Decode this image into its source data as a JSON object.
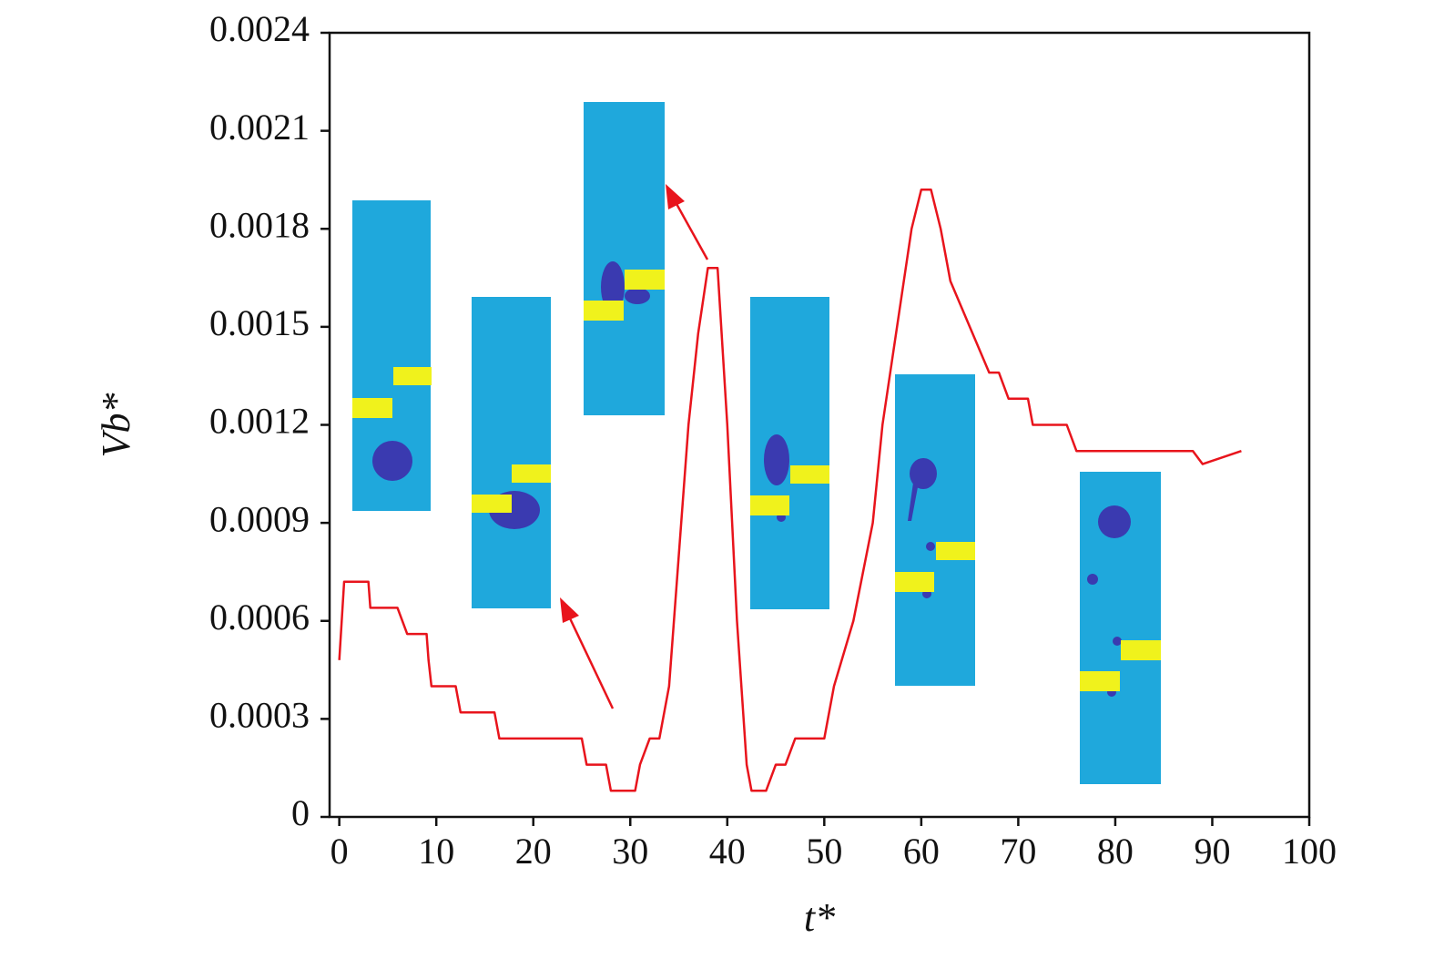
{
  "chart_data": {
    "type": "line",
    "xlabel": "t*",
    "ylabel": "Vb*",
    "x": [
      0,
      0.5,
      3,
      3.2,
      6,
      7,
      9,
      9.2,
      9.5,
      12,
      12.5,
      16,
      16.5,
      25,
      25.5,
      27.5,
      28,
      30.5,
      31,
      32,
      33,
      34,
      35,
      36,
      37,
      38,
      39,
      40,
      41,
      42,
      42.5,
      44,
      45,
      46,
      47,
      50,
      51,
      53,
      55,
      56,
      57,
      58,
      59,
      60,
      61,
      62,
      63,
      65,
      67,
      68,
      69,
      71,
      71.5,
      75,
      76,
      88,
      89,
      93
    ],
    "values": [
      0.00048,
      0.00072,
      0.00072,
      0.00064,
      0.00064,
      0.00056,
      0.00056,
      0.00048,
      0.0004,
      0.0004,
      0.00032,
      0.00032,
      0.00024,
      0.00024,
      0.00016,
      0.00016,
      8e-05,
      8e-05,
      0.00016,
      0.00024,
      0.00024,
      0.0004,
      0.0008,
      0.0012,
      0.00148,
      0.00168,
      0.00168,
      0.0012,
      0.0006,
      0.00016,
      8e-05,
      8e-05,
      0.00016,
      0.00016,
      0.00024,
      0.00024,
      0.0004,
      0.0006,
      0.0009,
      0.0012,
      0.0014,
      0.0016,
      0.0018,
      0.00192,
      0.00192,
      0.0018,
      0.00164,
      0.0015,
      0.00136,
      0.00136,
      0.00128,
      0.00128,
      0.0012,
      0.0012,
      0.00112,
      0.00112,
      0.00108,
      0.00112
    ],
    "color": "#e8141c",
    "xlim": [
      -1,
      100
    ],
    "xticks": [
      0,
      10,
      20,
      30,
      40,
      50,
      60,
      70,
      80,
      90,
      100
    ],
    "ylim": [
      0,
      0.0024
    ],
    "yticks": [
      0,
      0.0003,
      0.0006,
      0.0009,
      0.0012,
      0.0015,
      0.0018,
      0.0021,
      0.0024
    ]
  }
}
